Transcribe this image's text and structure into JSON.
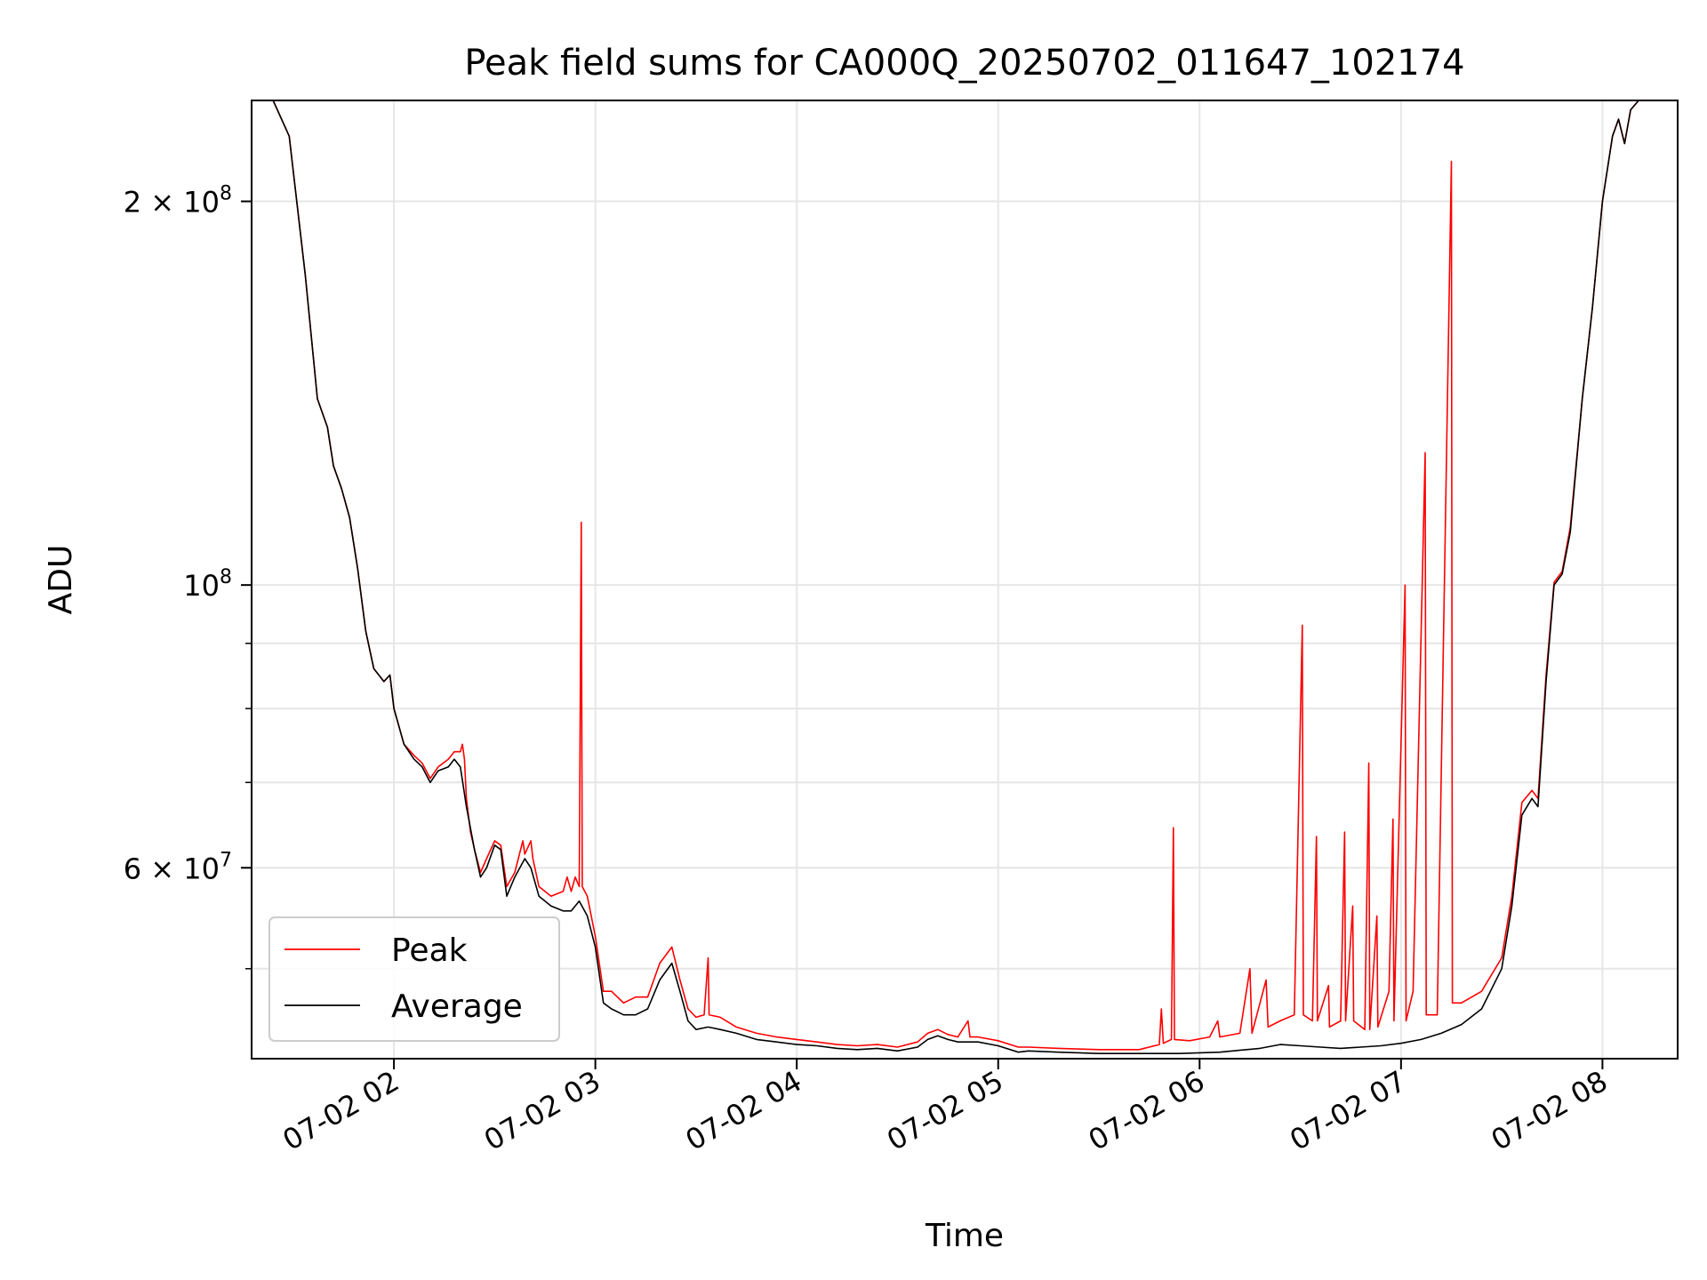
{
  "chart_data": {
    "type": "line",
    "title": "Peak field sums for CA000Q_20250702_011647_102174",
    "xlabel": "Time",
    "ylabel": "ADU",
    "yscale": "log",
    "ylim": [
      42500000,
      240000000
    ],
    "x_range_hours": [
      1.2934,
      8.3734
    ],
    "grid": true,
    "legend_position": "lower left",
    "colors": {
      "peak": "#ff0000",
      "average": "#000000"
    },
    "x_ticks": [
      {
        "value": 2,
        "label": "07-02 02"
      },
      {
        "value": 3,
        "label": "07-02 03"
      },
      {
        "value": 4,
        "label": "07-02 04"
      },
      {
        "value": 5,
        "label": "07-02 05"
      },
      {
        "value": 6,
        "label": "07-02 06"
      },
      {
        "value": 7,
        "label": "07-02 07"
      },
      {
        "value": 8,
        "label": "07-02 08"
      }
    ],
    "y_major_ticks": [
      {
        "value": 60000000,
        "label": "6 × 10^7",
        "mant": "6 × 10",
        "exp": "7"
      },
      {
        "value": 100000000,
        "label": "10^8",
        "mant": "10",
        "exp": "8"
      },
      {
        "value": 200000000,
        "label": "2 × 10^8",
        "mant": "2 × 10",
        "exp": "8"
      }
    ],
    "y_minor_ticks": [
      50000000,
      70000000,
      80000000,
      90000000
    ],
    "series": [
      {
        "name": "Average",
        "key": "average"
      },
      {
        "name": "Peak",
        "key": "peak"
      }
    ],
    "average": [
      [
        1.29,
        240
      ],
      [
        1.4,
        240
      ],
      [
        1.48,
        225
      ],
      [
        1.56,
        175
      ],
      [
        1.62,
        140
      ],
      [
        1.67,
        133
      ],
      [
        1.7,
        124
      ],
      [
        1.74,
        119
      ],
      [
        1.78,
        113
      ],
      [
        1.82,
        103
      ],
      [
        1.86,
        92
      ],
      [
        1.9,
        86
      ],
      [
        1.95,
        84
      ],
      [
        1.98,
        85
      ],
      [
        2.0,
        80
      ],
      [
        2.05,
        75
      ],
      [
        2.1,
        73
      ],
      [
        2.14,
        72
      ],
      [
        2.18,
        70
      ],
      [
        2.22,
        71.5
      ],
      [
        2.27,
        72
      ],
      [
        2.3,
        73
      ],
      [
        2.33,
        72
      ],
      [
        2.36,
        67
      ],
      [
        2.4,
        62
      ],
      [
        2.43,
        59
      ],
      [
        2.46,
        60
      ],
      [
        2.5,
        62.5
      ],
      [
        2.53,
        62
      ],
      [
        2.56,
        57
      ],
      [
        2.6,
        59
      ],
      [
        2.65,
        61
      ],
      [
        2.68,
        60
      ],
      [
        2.72,
        57
      ],
      [
        2.78,
        56
      ],
      [
        2.84,
        55.5
      ],
      [
        2.88,
        55.5
      ],
      [
        2.92,
        56.5
      ],
      [
        2.96,
        55
      ],
      [
        3.0,
        52
      ],
      [
        3.04,
        47
      ],
      [
        3.08,
        46.5
      ],
      [
        3.14,
        46
      ],
      [
        3.2,
        46
      ],
      [
        3.26,
        46.5
      ],
      [
        3.32,
        49
      ],
      [
        3.38,
        50.5
      ],
      [
        3.42,
        48
      ],
      [
        3.46,
        45.5
      ],
      [
        3.5,
        44.8
      ],
      [
        3.56,
        45
      ],
      [
        3.62,
        44.8
      ],
      [
        3.7,
        44.5
      ],
      [
        3.8,
        44
      ],
      [
        3.9,
        43.8
      ],
      [
        4.0,
        43.6
      ],
      [
        4.1,
        43.5
      ],
      [
        4.2,
        43.3
      ],
      [
        4.3,
        43.2
      ],
      [
        4.4,
        43.3
      ],
      [
        4.5,
        43.1
      ],
      [
        4.6,
        43.4
      ],
      [
        4.65,
        44
      ],
      [
        4.7,
        44.3
      ],
      [
        4.75,
        44
      ],
      [
        4.8,
        43.8
      ],
      [
        4.9,
        43.8
      ],
      [
        5.0,
        43.5
      ],
      [
        5.1,
        43
      ],
      [
        5.15,
        43.1
      ],
      [
        5.3,
        43.0
      ],
      [
        5.5,
        42.9
      ],
      [
        5.7,
        42.9
      ],
      [
        5.9,
        42.9
      ],
      [
        6.1,
        43.0
      ],
      [
        6.3,
        43.3
      ],
      [
        6.4,
        43.6
      ],
      [
        6.5,
        43.5
      ],
      [
        6.6,
        43.4
      ],
      [
        6.7,
        43.3
      ],
      [
        6.8,
        43.4
      ],
      [
        6.9,
        43.5
      ],
      [
        7.0,
        43.7
      ],
      [
        7.1,
        44.0
      ],
      [
        7.2,
        44.5
      ],
      [
        7.3,
        45.2
      ],
      [
        7.4,
        46.5
      ],
      [
        7.5,
        50
      ],
      [
        7.55,
        56
      ],
      [
        7.6,
        66
      ],
      [
        7.65,
        68
      ],
      [
        7.68,
        67
      ],
      [
        7.72,
        84
      ],
      [
        7.76,
        100
      ],
      [
        7.8,
        102
      ],
      [
        7.84,
        110
      ],
      [
        7.9,
        140
      ],
      [
        7.95,
        165
      ],
      [
        8.0,
        200
      ],
      [
        8.05,
        225
      ],
      [
        8.08,
        232
      ],
      [
        8.11,
        222
      ],
      [
        8.14,
        236
      ],
      [
        8.18,
        240
      ],
      [
        8.38,
        240
      ]
    ],
    "peak": [
      [
        1.29,
        240
      ],
      [
        1.4,
        240
      ],
      [
        1.48,
        225
      ],
      [
        1.56,
        175
      ],
      [
        1.62,
        140
      ],
      [
        1.67,
        133
      ],
      [
        1.7,
        124
      ],
      [
        1.74,
        119
      ],
      [
        1.78,
        113
      ],
      [
        1.82,
        103
      ],
      [
        1.86,
        92
      ],
      [
        1.9,
        86
      ],
      [
        1.95,
        84
      ],
      [
        1.98,
        85
      ],
      [
        2.0,
        80
      ],
      [
        2.05,
        75
      ],
      [
        2.1,
        73.5
      ],
      [
        2.14,
        72.5
      ],
      [
        2.18,
        70.5
      ],
      [
        2.22,
        72
      ],
      [
        2.27,
        73
      ],
      [
        2.3,
        74
      ],
      [
        2.33,
        74
      ],
      [
        2.34,
        75
      ],
      [
        2.35,
        73
      ],
      [
        2.36,
        68
      ],
      [
        2.38,
        64
      ],
      [
        2.4,
        62
      ],
      [
        2.43,
        59.5
      ],
      [
        2.46,
        61
      ],
      [
        2.5,
        63
      ],
      [
        2.53,
        62.5
      ],
      [
        2.56,
        58
      ],
      [
        2.6,
        59.5
      ],
      [
        2.64,
        63
      ],
      [
        2.65,
        61.5
      ],
      [
        2.68,
        63
      ],
      [
        2.69,
        61
      ],
      [
        2.72,
        58
      ],
      [
        2.78,
        57
      ],
      [
        2.84,
        57.5
      ],
      [
        2.86,
        59
      ],
      [
        2.88,
        57.5
      ],
      [
        2.9,
        59
      ],
      [
        2.92,
        58
      ],
      [
        2.93,
        112
      ],
      [
        2.935,
        58
      ],
      [
        2.96,
        57
      ],
      [
        3.0,
        53
      ],
      [
        3.04,
        48
      ],
      [
        3.08,
        48
      ],
      [
        3.14,
        47
      ],
      [
        3.2,
        47.5
      ],
      [
        3.26,
        47.5
      ],
      [
        3.32,
        50.5
      ],
      [
        3.38,
        52
      ],
      [
        3.42,
        49
      ],
      [
        3.46,
        46.5
      ],
      [
        3.5,
        45.8
      ],
      [
        3.54,
        46
      ],
      [
        3.56,
        51
      ],
      [
        3.565,
        46
      ],
      [
        3.62,
        45.8
      ],
      [
        3.7,
        45
      ],
      [
        3.8,
        44.5
      ],
      [
        3.9,
        44.2
      ],
      [
        4.0,
        44
      ],
      [
        4.1,
        43.8
      ],
      [
        4.2,
        43.6
      ],
      [
        4.3,
        43.5
      ],
      [
        4.4,
        43.6
      ],
      [
        4.5,
        43.4
      ],
      [
        4.6,
        43.8
      ],
      [
        4.65,
        44.5
      ],
      [
        4.7,
        44.8
      ],
      [
        4.75,
        44.4
      ],
      [
        4.8,
        44.2
      ],
      [
        4.85,
        45.5
      ],
      [
        4.86,
        44.2
      ],
      [
        4.9,
        44.2
      ],
      [
        5.0,
        43.9
      ],
      [
        5.1,
        43.4
      ],
      [
        5.15,
        43.4
      ],
      [
        5.3,
        43.3
      ],
      [
        5.5,
        43.2
      ],
      [
        5.7,
        43.2
      ],
      [
        5.8,
        43.6
      ],
      [
        5.81,
        46.5
      ],
      [
        5.82,
        43.7
      ],
      [
        5.86,
        44
      ],
      [
        5.87,
        64.5
      ],
      [
        5.875,
        44
      ],
      [
        5.95,
        43.9
      ],
      [
        6.05,
        44.2
      ],
      [
        6.09,
        45.5
      ],
      [
        6.1,
        44.2
      ],
      [
        6.2,
        44.5
      ],
      [
        6.25,
        50
      ],
      [
        6.26,
        44.5
      ],
      [
        6.33,
        49
      ],
      [
        6.34,
        45
      ],
      [
        6.4,
        45.5
      ],
      [
        6.47,
        46
      ],
      [
        6.51,
        93
      ],
      [
        6.515,
        46
      ],
      [
        6.56,
        45.5
      ],
      [
        6.58,
        63.5
      ],
      [
        6.585,
        45.5
      ],
      [
        6.64,
        48.5
      ],
      [
        6.645,
        45
      ],
      [
        6.7,
        45.5
      ],
      [
        6.72,
        64
      ],
      [
        6.725,
        45.5
      ],
      [
        6.76,
        56
      ],
      [
        6.765,
        45.5
      ],
      [
        6.82,
        44.8
      ],
      [
        6.84,
        72.5
      ],
      [
        6.845,
        44.8
      ],
      [
        6.88,
        55
      ],
      [
        6.885,
        45
      ],
      [
        6.94,
        48
      ],
      [
        6.96,
        65.5
      ],
      [
        6.965,
        45.5
      ],
      [
        7.02,
        100
      ],
      [
        7.025,
        45.5
      ],
      [
        7.06,
        48
      ],
      [
        7.12,
        127
      ],
      [
        7.125,
        46
      ],
      [
        7.18,
        46
      ],
      [
        7.25,
        215
      ],
      [
        7.255,
        47
      ],
      [
        7.3,
        47
      ],
      [
        7.4,
        48
      ],
      [
        7.5,
        51
      ],
      [
        7.55,
        57
      ],
      [
        7.6,
        67.5
      ],
      [
        7.65,
        69
      ],
      [
        7.68,
        68
      ],
      [
        7.72,
        85
      ],
      [
        7.76,
        100.5
      ],
      [
        7.8,
        102.5
      ],
      [
        7.84,
        111
      ],
      [
        7.9,
        140
      ],
      [
        7.95,
        165
      ],
      [
        8.0,
        200
      ],
      [
        8.05,
        225
      ],
      [
        8.08,
        232
      ],
      [
        8.11,
        222
      ],
      [
        8.14,
        236
      ],
      [
        8.18,
        240
      ],
      [
        8.38,
        240
      ]
    ],
    "values_unit_note": "series y values in millions of ADU"
  }
}
